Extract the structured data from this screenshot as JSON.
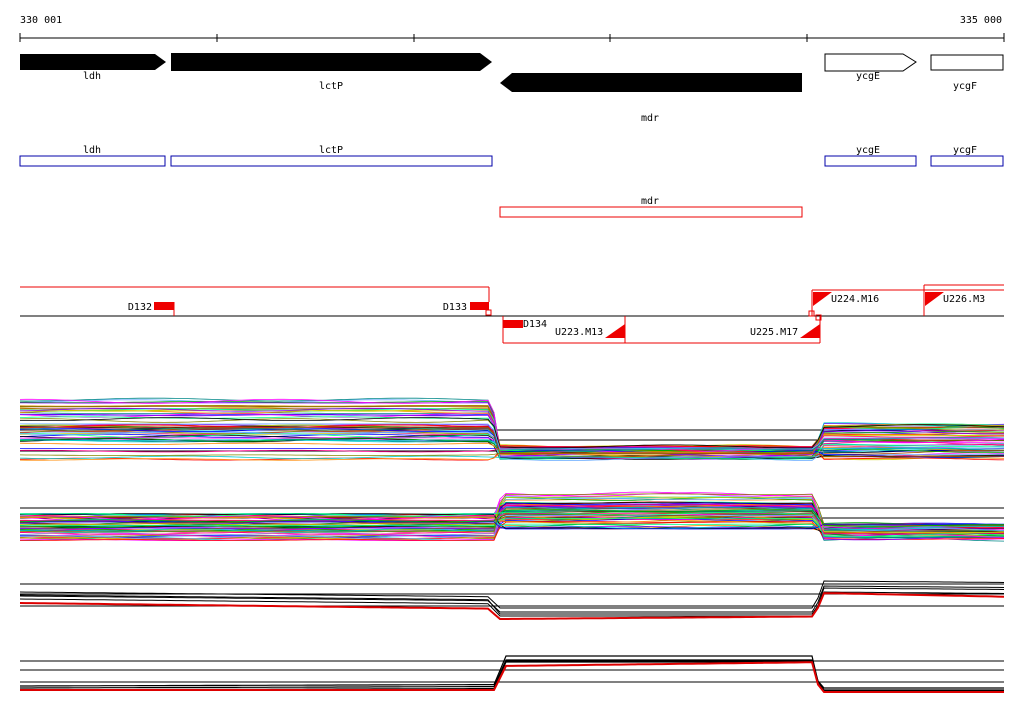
{
  "coords": {
    "start": "330 001",
    "end": "335 000"
  },
  "genes": {
    "ldh": "ldh",
    "lctP": "lctP",
    "mdr": "mdr",
    "ycgE": "ycgE",
    "ycgF": "ycgF"
  },
  "segments": {
    "D132": "D132",
    "D133": "D133",
    "D134": "D134",
    "U223": "U223.M13",
    "U224": "U224.M16",
    "U225": "U225.M17",
    "U226": "U226.M3"
  },
  "colors": {
    "arrow_fill": "#000000",
    "annotation_box": "#0000aa",
    "annotation_box_mdr": "#ee0000",
    "segment_red": "#ee0000",
    "red_trace": "#dd0000"
  }
}
